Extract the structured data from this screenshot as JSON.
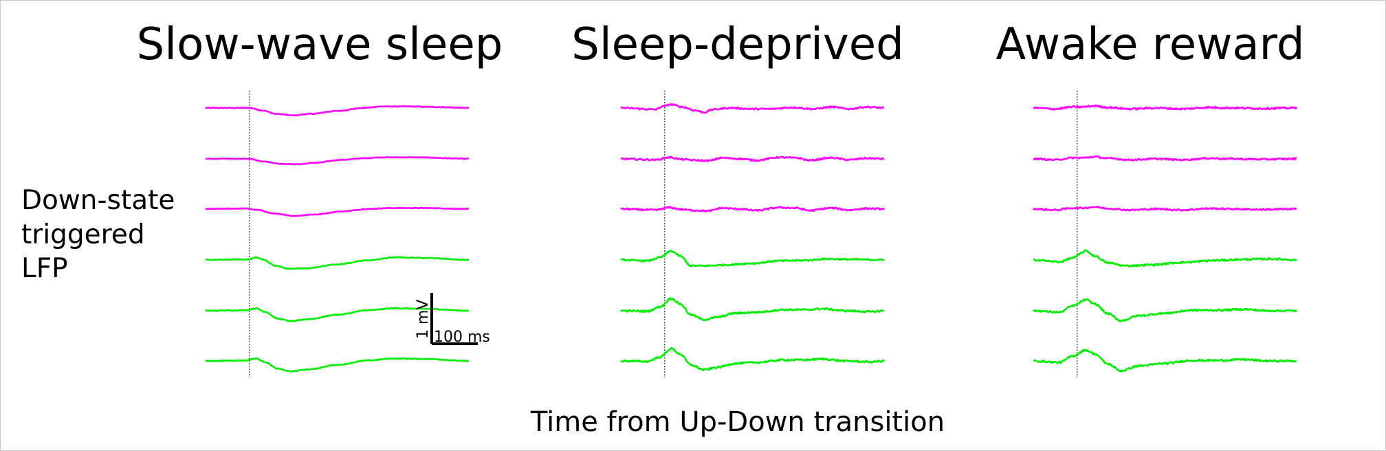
{
  "chart_data": {
    "type": "line",
    "panels": [
      {
        "title": "Slow-wave sleep",
        "traces": [
          {
            "channel": 1,
            "color": "#ff00ff",
            "shape": "swsA",
            "noise": 0.015
          },
          {
            "channel": 2,
            "color": "#ff00ff",
            "shape": "swsB",
            "noise": 0.012
          },
          {
            "channel": 3,
            "color": "#ff00ff",
            "shape": "swsC",
            "noise": 0.012
          },
          {
            "channel": 4,
            "color": "#00ee00",
            "shape": "swsD",
            "noise": 0.015
          },
          {
            "channel": 5,
            "color": "#00ee00",
            "shape": "swsE",
            "noise": 0.015
          },
          {
            "channel": 6,
            "color": "#00ee00",
            "shape": "swsE",
            "noise": 0.015
          }
        ]
      },
      {
        "title": "Sleep-deprived",
        "traces": [
          {
            "channel": 1,
            "color": "#ff00ff",
            "shape": "sdA",
            "noise": 0.03
          },
          {
            "channel": 2,
            "color": "#ff00ff",
            "shape": "sdB",
            "noise": 0.03
          },
          {
            "channel": 3,
            "color": "#ff00ff",
            "shape": "sdB",
            "noise": 0.03
          },
          {
            "channel": 4,
            "color": "#00ee00",
            "shape": "sdD",
            "noise": 0.03
          },
          {
            "channel": 5,
            "color": "#00ee00",
            "shape": "sdE",
            "noise": 0.035
          },
          {
            "channel": 6,
            "color": "#00ee00",
            "shape": "sdE",
            "noise": 0.035
          }
        ]
      },
      {
        "title": "Awake reward",
        "traces": [
          {
            "channel": 1,
            "color": "#ff00ff",
            "shape": "awA",
            "noise": 0.035
          },
          {
            "channel": 2,
            "color": "#ff00ff",
            "shape": "awA",
            "noise": 0.03
          },
          {
            "channel": 3,
            "color": "#ff00ff",
            "shape": "awA",
            "noise": 0.03
          },
          {
            "channel": 4,
            "color": "#00ee00",
            "shape": "awD",
            "noise": 0.035
          },
          {
            "channel": 5,
            "color": "#00ee00",
            "shape": "awE",
            "noise": 0.035
          },
          {
            "channel": 6,
            "color": "#00ee00",
            "shape": "awE",
            "noise": 0.035
          }
        ]
      }
    ],
    "ylabel_lines": [
      "Down-state",
      "triggered",
      "LFP"
    ],
    "xlabel": "Time from Up-Down transition",
    "time_window_ms": [
      -100,
      500
    ],
    "trigger_marker": "dotted vertical line at 0 ms",
    "scale_bar": {
      "vertical_value": 1,
      "vertical_label": "1 mV",
      "horizontal_value": 100,
      "horizontal_label": "100 ms"
    }
  }
}
